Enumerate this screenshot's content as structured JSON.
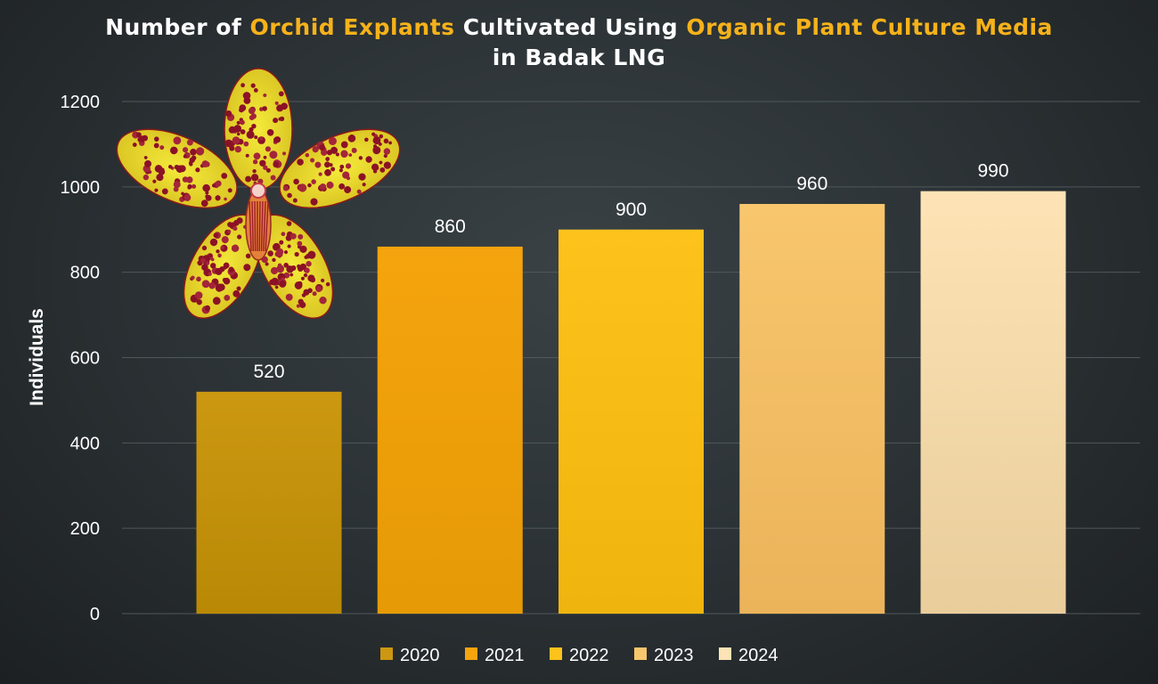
{
  "title_parts": [
    {
      "text": "Number of ",
      "highlight": false
    },
    {
      "text": "Orchid Explants",
      "highlight": true
    },
    {
      "text": " Cultivated Using ",
      "highlight": false
    },
    {
      "text": "Organic Plant Culture Media",
      "highlight": true
    },
    {
      "text": "in Badak LNG",
      "highlight": false,
      "newline": true
    }
  ],
  "colors": {
    "highlight": "#f6b21a",
    "grid": "#4f585c",
    "series": [
      "#cc9812",
      "#f5a40d",
      "#fec21c",
      "#f8c66d",
      "#fde3b5"
    ],
    "series_bottom": [
      "#b98905",
      "#e59a06",
      "#f0b40f",
      "#ebb35a",
      "#e9cd9b"
    ]
  },
  "decoration": {
    "image": "orchid-flower"
  },
  "chart_data": {
    "type": "bar",
    "title": "Number of Orchid Explants Cultivated Using Organic Plant Culture Media in Badak LNG",
    "xlabel": "",
    "ylabel": "Individuals",
    "ylim": [
      0,
      1200
    ],
    "yticks": [
      0,
      200,
      400,
      600,
      800,
      1000,
      1200
    ],
    "grid": true,
    "legend_position": "bottom",
    "series": [
      {
        "name": "2020",
        "values": [
          520
        ]
      },
      {
        "name": "2021",
        "values": [
          860
        ]
      },
      {
        "name": "2022",
        "values": [
          900
        ]
      },
      {
        "name": "2023",
        "values": [
          960
        ]
      },
      {
        "name": "2024",
        "values": [
          990
        ]
      }
    ],
    "data_labels": [
      "520",
      "860",
      "900",
      "960",
      "990"
    ]
  }
}
